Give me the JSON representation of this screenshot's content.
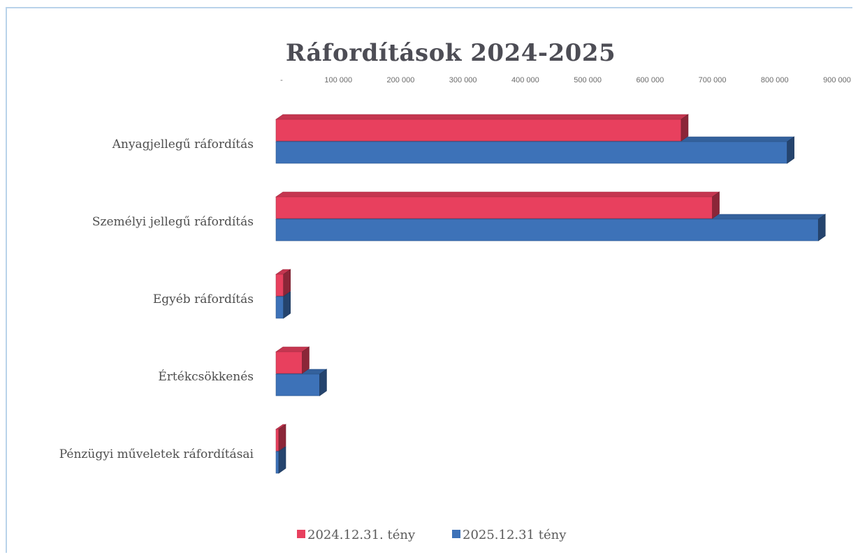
{
  "chart_data": {
    "type": "bar",
    "orientation": "horizontal",
    "style": "3d",
    "title": "Ráfordítások 2024-2025",
    "xlabel": "",
    "ylabel": "",
    "xlim": [
      0,
      900000
    ],
    "ticks": [
      0,
      100000,
      200000,
      300000,
      400000,
      500000,
      600000,
      700000,
      800000,
      900000
    ],
    "tick_labels": [
      "-",
      "100 000",
      "200 000",
      "300 000",
      "400 000",
      "500 000",
      "600 000",
      "700 000",
      "800 000",
      "900 000"
    ],
    "axis_position": "top",
    "grid": false,
    "legend_position": "bottom",
    "categories": [
      "Anyagjellegű ráfordítás",
      "Személyi jellegű ráfordítás",
      "Egyéb ráfordítás",
      "Értékcsökkenés",
      "Pénzügyi műveletek ráfordításai"
    ],
    "series": [
      {
        "name": "2024.12.31. tény",
        "color": "#e8405e",
        "values": [
          650000,
          700000,
          12000,
          42000,
          3000
        ]
      },
      {
        "name": "2025.12.31 tény",
        "color": "#3d72b8",
        "values": [
          820000,
          870000,
          12000,
          70000,
          3000
        ]
      }
    ]
  }
}
